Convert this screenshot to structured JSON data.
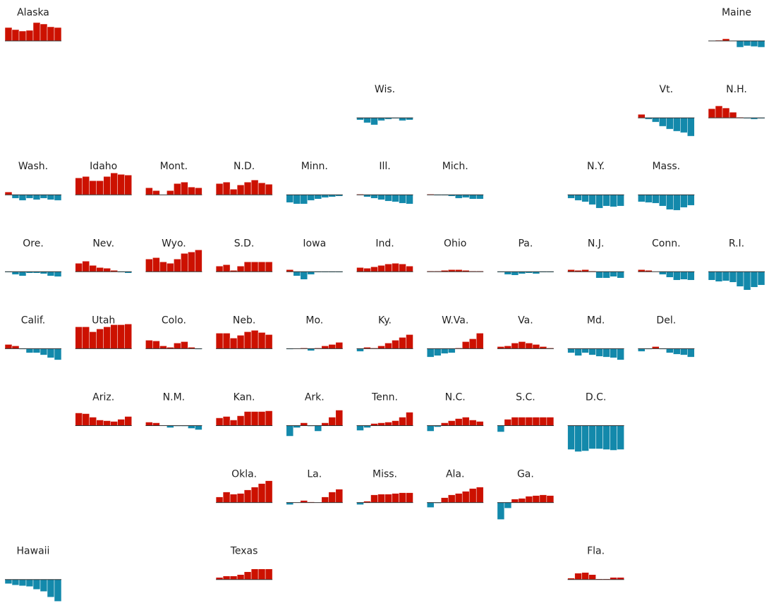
{
  "colors": {
    "positive": "#cc1100",
    "negative": "#1389ab",
    "baseline": "#333333"
  },
  "chart_data": {
    "type": "bar",
    "description_of_values": "small-multiple bar charts per state; positive bars red, negative bars blue",
    "states": [
      {
        "name": "Alaska",
        "row": 0,
        "col": 0,
        "values": [
          19,
          16,
          14,
          15,
          26,
          24,
          20,
          19
        ]
      },
      {
        "name": "Maine",
        "row": 0,
        "col": 10,
        "values": [
          0,
          1,
          3,
          0,
          -9,
          -7,
          -8,
          -9
        ]
      },
      {
        "name": "Wis.",
        "row": 1,
        "col": 5,
        "values": [
          -3,
          -7,
          -10,
          -4,
          -2,
          -1,
          -4,
          -3
        ]
      },
      {
        "name": "Vt.",
        "row": 1,
        "col": 9,
        "values": [
          5,
          -2,
          -6,
          -12,
          -16,
          -19,
          -21,
          -26
        ]
      },
      {
        "name": "N.H.",
        "row": 1,
        "col": 10,
        "values": [
          13,
          17,
          14,
          8,
          1,
          -1,
          -2,
          -1
        ]
      },
      {
        "name": "Wash.",
        "row": 2,
        "col": 0,
        "values": [
          4,
          -5,
          -8,
          -5,
          -7,
          -5,
          -7,
          -8
        ]
      },
      {
        "name": "Idaho",
        "row": 2,
        "col": 1,
        "values": [
          24,
          26,
          20,
          20,
          26,
          31,
          29,
          28
        ]
      },
      {
        "name": "Mont.",
        "row": 2,
        "col": 2,
        "values": [
          10,
          6,
          0,
          6,
          16,
          18,
          11,
          10
        ]
      },
      {
        "name": "N.D.",
        "row": 2,
        "col": 3,
        "values": [
          16,
          18,
          8,
          14,
          18,
          21,
          17,
          15
        ]
      },
      {
        "name": "Minn.",
        "row": 2,
        "col": 4,
        "values": [
          -11,
          -13,
          -13,
          -8,
          -6,
          -4,
          -3,
          -2
        ]
      },
      {
        "name": "Ill.",
        "row": 2,
        "col": 5,
        "values": [
          1,
          -3,
          -5,
          -7,
          -9,
          -10,
          -12,
          -13
        ]
      },
      {
        "name": "Mich.",
        "row": 2,
        "col": 6,
        "values": [
          1,
          -1,
          -1,
          -2,
          -5,
          -4,
          -6,
          -6
        ]
      },
      {
        "name": "N.Y.",
        "row": 2,
        "col": 8,
        "values": [
          -5,
          -8,
          -10,
          -14,
          -19,
          -16,
          -17,
          -16
        ]
      },
      {
        "name": "Mass.",
        "row": 2,
        "col": 9,
        "values": [
          -10,
          -11,
          -12,
          -16,
          -21,
          -22,
          -18,
          -15
        ]
      },
      {
        "name": "Ore.",
        "row": 3,
        "col": 0,
        "values": [
          -1,
          -4,
          -6,
          -2,
          -2,
          -3,
          -6,
          -7
        ]
      },
      {
        "name": "Nev.",
        "row": 3,
        "col": 1,
        "values": [
          12,
          15,
          9,
          6,
          5,
          2,
          -1,
          -2
        ]
      },
      {
        "name": "Wyo.",
        "row": 3,
        "col": 2,
        "values": [
          18,
          20,
          14,
          12,
          18,
          26,
          28,
          31
        ]
      },
      {
        "name": "S.D.",
        "row": 3,
        "col": 3,
        "values": [
          8,
          10,
          2,
          8,
          14,
          14,
          14,
          14
        ]
      },
      {
        "name": "Iowa",
        "row": 3,
        "col": 4,
        "values": [
          3,
          -6,
          -11,
          -4,
          -1,
          -1,
          -1,
          -1
        ]
      },
      {
        "name": "Ind.",
        "row": 3,
        "col": 5,
        "values": [
          6,
          5,
          7,
          9,
          11,
          12,
          11,
          8
        ]
      },
      {
        "name": "Ohio",
        "row": 3,
        "col": 6,
        "values": [
          1,
          1,
          2,
          3,
          3,
          2,
          1,
          1
        ]
      },
      {
        "name": "Pa.",
        "row": 3,
        "col": 7,
        "values": [
          -1,
          -4,
          -5,
          -3,
          -2,
          -3,
          -1,
          -1
        ]
      },
      {
        "name": "N.J.",
        "row": 3,
        "col": 8,
        "values": [
          3,
          2,
          3,
          1,
          -9,
          -9,
          -7,
          -9
        ]
      },
      {
        "name": "Conn.",
        "row": 3,
        "col": 9,
        "values": [
          3,
          2,
          0,
          -4,
          -8,
          -12,
          -11,
          -12
        ]
      },
      {
        "name": "R.I.",
        "row": 3,
        "col": 10,
        "values": [
          -12,
          -14,
          -13,
          -15,
          -21,
          -26,
          -22,
          -19
        ]
      },
      {
        "name": "Calif.",
        "row": 4,
        "col": 0,
        "values": [
          6,
          4,
          -1,
          -6,
          -6,
          -9,
          -13,
          -16
        ]
      },
      {
        "name": "Utah",
        "row": 4,
        "col": 1,
        "values": [
          31,
          31,
          24,
          28,
          31,
          34,
          34,
          35
        ]
      },
      {
        "name": "Colo.",
        "row": 4,
        "col": 2,
        "values": [
          12,
          11,
          4,
          2,
          8,
          10,
          2,
          -1
        ]
      },
      {
        "name": "Neb.",
        "row": 4,
        "col": 3,
        "values": [
          22,
          22,
          15,
          19,
          24,
          26,
          23,
          20
        ]
      },
      {
        "name": "Mo.",
        "row": 4,
        "col": 4,
        "values": [
          -1,
          0,
          1,
          -3,
          1,
          4,
          6,
          9
        ]
      },
      {
        "name": "Ky.",
        "row": 4,
        "col": 5,
        "values": [
          -4,
          2,
          1,
          4,
          8,
          12,
          16,
          20
        ]
      },
      {
        "name": "W.Va.",
        "row": 4,
        "col": 6,
        "values": [
          -12,
          -10,
          -7,
          -6,
          1,
          10,
          14,
          22
        ]
      },
      {
        "name": "Va.",
        "row": 4,
        "col": 7,
        "values": [
          3,
          4,
          8,
          10,
          8,
          6,
          3,
          1
        ]
      },
      {
        "name": "Md.",
        "row": 4,
        "col": 8,
        "values": [
          -6,
          -10,
          -6,
          -9,
          -11,
          -12,
          -13,
          -16
        ]
      },
      {
        "name": "Del.",
        "row": 4,
        "col": 9,
        "values": [
          -4,
          -1,
          3,
          -1,
          -6,
          -8,
          -9,
          -12
        ]
      },
      {
        "name": "Ariz.",
        "row": 5,
        "col": 1,
        "values": [
          18,
          17,
          12,
          8,
          7,
          6,
          9,
          13
        ]
      },
      {
        "name": "N.M.",
        "row": 5,
        "col": 2,
        "values": [
          5,
          4,
          0,
          -3,
          -1,
          -1,
          -4,
          -6
        ]
      },
      {
        "name": "Kan.",
        "row": 5,
        "col": 3,
        "values": [
          11,
          13,
          8,
          14,
          20,
          20,
          20,
          21
        ]
      },
      {
        "name": "Ark.",
        "row": 5,
        "col": 4,
        "values": [
          -15,
          -3,
          4,
          -1,
          -8,
          4,
          12,
          22
        ]
      },
      {
        "name": "Tenn.",
        "row": 5,
        "col": 5,
        "values": [
          -7,
          -3,
          3,
          4,
          5,
          7,
          12,
          19
        ]
      },
      {
        "name": "N.C.",
        "row": 5,
        "col": 6,
        "values": [
          -8,
          -2,
          4,
          7,
          10,
          12,
          8,
          6
        ]
      },
      {
        "name": "S.C.",
        "row": 5,
        "col": 7,
        "values": [
          -9,
          9,
          12,
          12,
          12,
          12,
          12,
          12
        ]
      },
      {
        "name": "D.C.",
        "row": 5,
        "col": 8,
        "values": [
          -34,
          -37,
          -36,
          -33,
          -33,
          -34,
          -35,
          -34
        ]
      },
      {
        "name": "Okla.",
        "row": 6,
        "col": 3,
        "values": [
          8,
          15,
          12,
          13,
          18,
          22,
          27,
          31
        ]
      },
      {
        "name": "La.",
        "row": 6,
        "col": 4,
        "values": [
          -3,
          0,
          3,
          1,
          0,
          8,
          15,
          19
        ]
      },
      {
        "name": "Miss.",
        "row": 6,
        "col": 5,
        "values": [
          -3,
          2,
          11,
          12,
          12,
          13,
          14,
          14
        ]
      },
      {
        "name": "Ala.",
        "row": 6,
        "col": 6,
        "values": [
          -7,
          -1,
          7,
          11,
          13,
          16,
          20,
          22
        ]
      },
      {
        "name": "Ga.",
        "row": 6,
        "col": 7,
        "values": [
          -24,
          -8,
          5,
          6,
          9,
          10,
          11,
          10
        ]
      },
      {
        "name": "Hawaii",
        "row": 7,
        "col": 0,
        "values": [
          -6,
          -8,
          -9,
          -10,
          -14,
          -17,
          -25,
          -31
        ]
      },
      {
        "name": "Texas",
        "row": 7,
        "col": 3,
        "values": [
          3,
          5,
          5,
          7,
          11,
          15,
          15,
          15
        ]
      },
      {
        "name": "Fla.",
        "row": 7,
        "col": 8,
        "values": [
          2,
          9,
          10,
          7,
          1,
          1,
          3,
          3
        ]
      }
    ]
  }
}
